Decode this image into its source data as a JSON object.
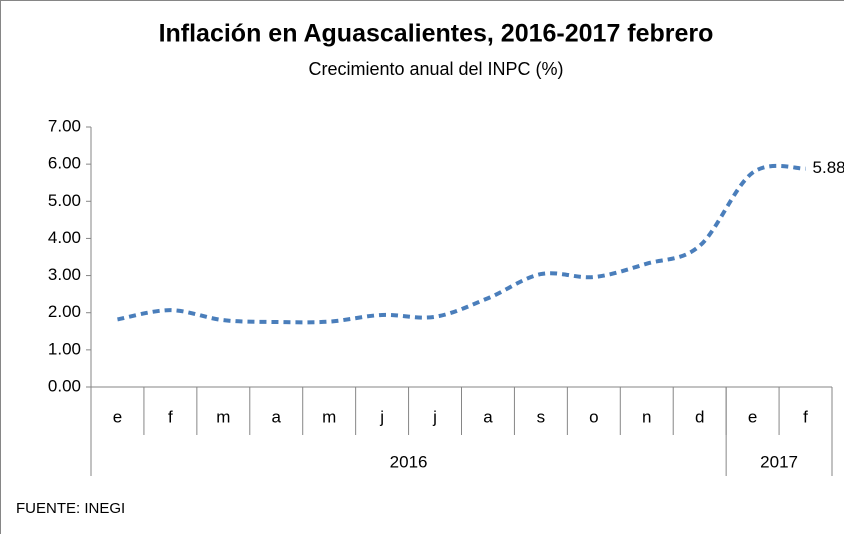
{
  "chart_data": {
    "type": "line",
    "title": "Inflación en Aguascalientes, 2016-2017 febrero",
    "subtitle": "Crecimiento anual del INPC (%)",
    "source": "FUENTE: INEGI",
    "categories": [
      "e",
      "f",
      "m",
      "a",
      "m",
      "j",
      "j",
      "a",
      "s",
      "o",
      "n",
      "d",
      "e",
      "f"
    ],
    "year_groups": [
      {
        "label": "2016",
        "span": 12
      },
      {
        "label": "2017",
        "span": 2
      }
    ],
    "series": [
      {
        "name": "Aguascalientes",
        "color": "#4a7ebb",
        "values": [
          1.82,
          2.07,
          1.8,
          1.75,
          1.76,
          1.94,
          1.89,
          2.39,
          3.04,
          2.96,
          3.32,
          3.8,
          5.77,
          5.88
        ],
        "value_labels": [
          null,
          null,
          null,
          null,
          null,
          null,
          null,
          null,
          null,
          null,
          null,
          null,
          null,
          "5.88"
        ]
      }
    ],
    "ylim": [
      0,
      7
    ],
    "yticks": [
      {
        "value": 0,
        "label": "0.00"
      },
      {
        "value": 1,
        "label": "1.00"
      },
      {
        "value": 2,
        "label": "2.00"
      },
      {
        "value": 3,
        "label": "3.00"
      },
      {
        "value": 4,
        "label": "4.00"
      },
      {
        "value": 5,
        "label": "5.00"
      },
      {
        "value": 6,
        "label": "6.00"
      },
      {
        "value": 7,
        "label": "7.00"
      }
    ],
    "grid": false
  }
}
